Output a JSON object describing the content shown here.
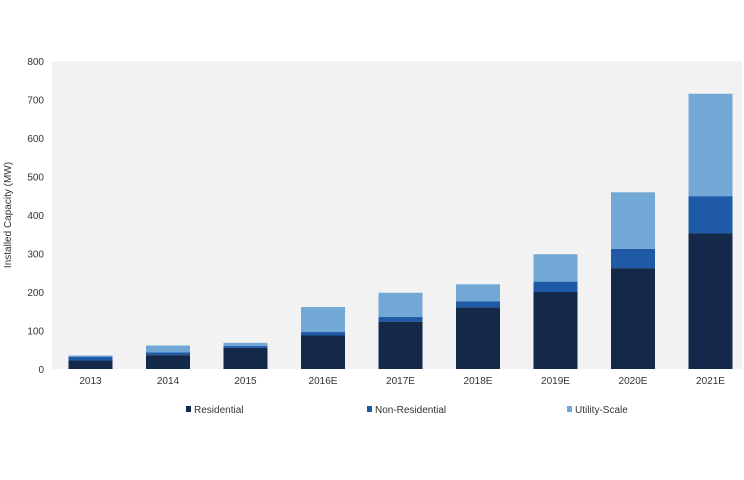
{
  "chart_data": {
    "type": "bar",
    "stacked": true,
    "title": "",
    "xlabel": "",
    "ylabel": "Installed Capacity (MW)",
    "ylim": [
      0,
      800
    ],
    "yticks": [
      0,
      100,
      200,
      300,
      400,
      500,
      600,
      700,
      800
    ],
    "categories": [
      "2013",
      "2014",
      "2015",
      "2016E",
      "2017E",
      "2018E",
      "2019E",
      "2020E",
      "2021E"
    ],
    "series": [
      {
        "name": "Residential",
        "color": "#14284a",
        "values": [
          22,
          36,
          55,
          87,
          123,
          160,
          200,
          262,
          352
        ]
      },
      {
        "name": "Non-Residential",
        "color": "#1f5aa6",
        "values": [
          10,
          7,
          5,
          9,
          12,
          16,
          27,
          50,
          97
        ]
      },
      {
        "name": "Utility-Scale",
        "color": "#73a8d6",
        "values": [
          3,
          18,
          8,
          65,
          63,
          44,
          71,
          147,
          266
        ]
      }
    ],
    "grid": false,
    "plot_background": "#f2f2f2",
    "legend_position": "bottom"
  }
}
